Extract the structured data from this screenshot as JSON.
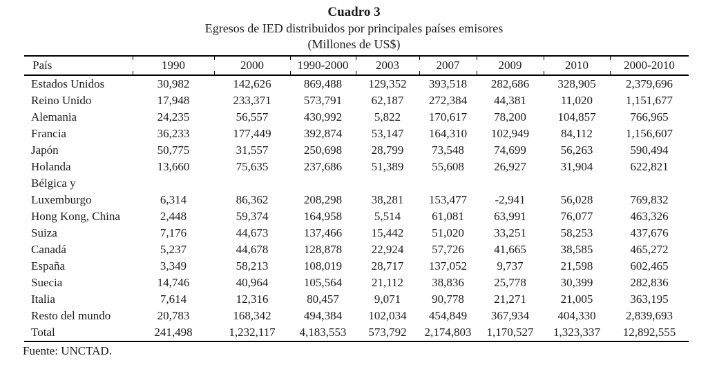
{
  "title": "Cuadro 3",
  "subtitle": "Egresos de IED distribuidos por principales países emisores",
  "units": "(Millones de US$)",
  "source": "Fuente: UNCTAD.",
  "colors": {
    "text": "#1c1c1c",
    "rule": "#000000",
    "background": "#ffffff"
  },
  "table": {
    "columns": [
      "País",
      "1990",
      "2000",
      "1990-2000",
      "2003",
      "2007",
      "2009",
      "2010",
      "2000-2010"
    ],
    "rows": [
      {
        "country": "Estados Unidos",
        "values": [
          "30,982",
          "142,626",
          "869,488",
          "129,352",
          "393,518",
          "282,686",
          "328,905",
          "2,379,696"
        ]
      },
      {
        "country": "Reino Unido",
        "values": [
          "17,948",
          "233,371",
          "573,791",
          "62,187",
          "272,384",
          "44,381",
          "11,020",
          "1,151,677"
        ]
      },
      {
        "country": "Alemania",
        "values": [
          "24,235",
          "56,557",
          "430,992",
          "5,822",
          "170,617",
          "78,200",
          "104,857",
          "766,965"
        ]
      },
      {
        "country": "Francia",
        "values": [
          "36,233",
          "177,449",
          "392,874",
          "53,147",
          "164,310",
          "102,949",
          "84,112",
          "1,156,607"
        ]
      },
      {
        "country": "Japón",
        "values": [
          "50,775",
          "31,557",
          "250,698",
          "28,799",
          "73,548",
          "74,699",
          "56,263",
          "590,494"
        ]
      },
      {
        "country": "Holanda",
        "values": [
          "13,660",
          "75,635",
          "237,686",
          "51,389",
          "55,608",
          "26,927",
          "31,904",
          "622,821"
        ]
      },
      {
        "country": "Bélgica y\nLuxemburgo",
        "values": [
          "6,314",
          "86,362",
          "208,298",
          "38,281",
          "153,477",
          "-2,941",
          "56,028",
          "769,832"
        ]
      },
      {
        "country": "Hong Kong, China",
        "values": [
          "2,448",
          "59,374",
          "164,958",
          "5,514",
          "61,081",
          "63,991",
          "76,077",
          "463,326"
        ]
      },
      {
        "country": "Suiza",
        "values": [
          "7,176",
          "44,673",
          "137,466",
          "15,442",
          "51,020",
          "33,251",
          "58,253",
          "437,676"
        ]
      },
      {
        "country": "Canadá",
        "values": [
          "5,237",
          "44,678",
          "128,878",
          "22,924",
          "57,726",
          "41,665",
          "38,585",
          "465,272"
        ]
      },
      {
        "country": "España",
        "values": [
          "3,349",
          "58,213",
          "108,019",
          "28,717",
          "137,052",
          "9,737",
          "21,598",
          "602,465"
        ]
      },
      {
        "country": "Suecia",
        "values": [
          "14,746",
          "40,964",
          "105,564",
          "21,112",
          "38,836",
          "25,778",
          "30,399",
          "282,836"
        ]
      },
      {
        "country": "Italia",
        "values": [
          "7,614",
          "12,316",
          "80,457",
          "9,071",
          "90,778",
          "21,271",
          "21,005",
          "363,195"
        ]
      },
      {
        "country": "Resto del mundo",
        "values": [
          "20,783",
          "168,342",
          "494,384",
          "102,034",
          "454,849",
          "367,934",
          "404,330",
          "2,839,693"
        ]
      },
      {
        "country": "Total",
        "total": true,
        "values": [
          "241,498",
          "1,232,117",
          "4,183,553",
          "573,792",
          "2,174,803",
          "1,170,527",
          "1,323,337",
          "12,892,555"
        ]
      }
    ]
  }
}
